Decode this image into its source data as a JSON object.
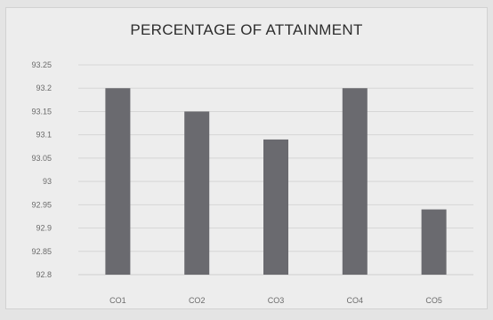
{
  "chart_data": {
    "type": "bar",
    "title": "PERCENTAGE OF ATTAINMENT",
    "xlabel": "",
    "ylabel": "",
    "categories": [
      "CO1",
      "CO2",
      "CO3",
      "CO4",
      "CO5"
    ],
    "values": [
      93.2,
      93.15,
      93.09,
      93.2,
      92.94
    ],
    "ylim": [
      92.8,
      93.25
    ],
    "yticks": [
      "93.25",
      "93.2",
      "93.15",
      "93.1",
      "93.05",
      "93",
      "92.95",
      "92.9",
      "92.85",
      "92.8"
    ],
    "grid": true,
    "legend": "none",
    "colors": {
      "bar": "#6a6a6f",
      "grid": "#d6d6d6",
      "axis": "#cfcfcf"
    }
  }
}
